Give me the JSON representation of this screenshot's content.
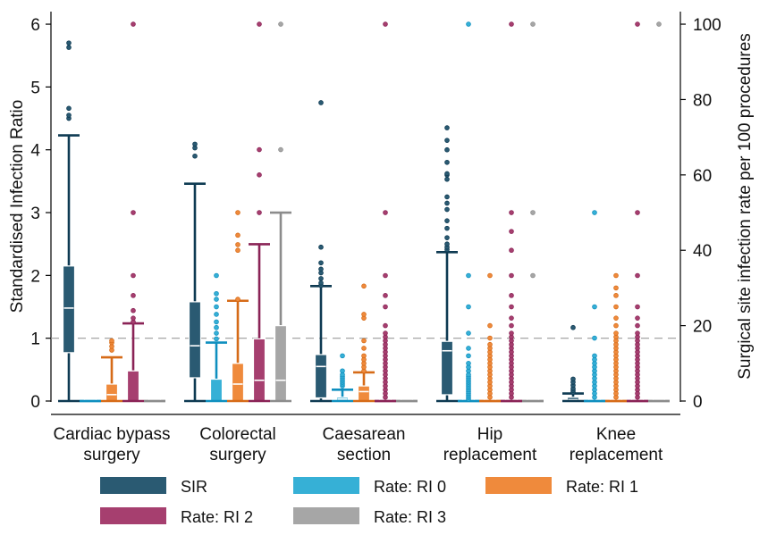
{
  "chart_data": {
    "type": "box",
    "ylabel": "Standardised Infection Ratio",
    "y2label": "Surgical site infection rate per 100 procedures",
    "ylim": [
      0,
      6.2
    ],
    "y2lim": [
      0,
      103.33
    ],
    "yticks": [
      "0",
      "1",
      "2",
      "3",
      "4",
      "5",
      "6"
    ],
    "y2ticks": [
      "0",
      "20",
      "40",
      "60",
      "80",
      "100"
    ],
    "reference_line": 1,
    "categories": [
      {
        "line1": "Cardiac bypass",
        "line2": "surgery"
      },
      {
        "line1": "Colorectal",
        "line2": "surgery"
      },
      {
        "line1": "Caesarean",
        "line2": "section"
      },
      {
        "line1": "Hip",
        "line2": "replacement"
      },
      {
        "line1": "Knee",
        "line2": "replacement"
      }
    ],
    "legend": [
      {
        "label": "SIR",
        "color": "#2a5a72"
      },
      {
        "label": "Rate: RI 0",
        "color": "#36b0d6"
      },
      {
        "label": "Rate: RI 1",
        "color": "#ef8a3c"
      },
      {
        "label": "Rate: RI 2",
        "color": "#a63f6f"
      },
      {
        "label": "Rate: RI 3",
        "color": "#a6a6a6"
      }
    ],
    "series": [
      {
        "name": "SIR",
        "axis": "left",
        "color": "#2a5a72",
        "edge": "#0e3a52",
        "boxes": [
          {
            "q1": 0.77,
            "med": 1.48,
            "q3": 2.15,
            "lo": 0,
            "hi": 4.23,
            "out": [
              4.5,
              4.55,
              4.66,
              5.63,
              5.7
            ]
          },
          {
            "q1": 0.37,
            "med": 0.88,
            "q3": 1.58,
            "lo": 0,
            "hi": 3.46,
            "out": [
              3.9,
              4.03,
              4.09
            ]
          },
          {
            "q1": 0.05,
            "med": 0.55,
            "q3": 0.74,
            "lo": 0,
            "hi": 1.83,
            "out": [
              1.84,
              1.88,
              1.95,
              2.04,
              2.1,
              2.2,
              2.45,
              4.75
            ]
          },
          {
            "q1": 0.1,
            "med": 0.8,
            "q3": 0.95,
            "lo": 0,
            "hi": 2.37,
            "out": [
              2.41,
              2.45,
              2.5,
              2.6,
              2.75,
              2.87,
              3.05,
              3.15,
              3.25,
              3.53,
              3.6,
              3.62,
              3.8,
              4.0,
              4.15,
              4.35
            ]
          },
          {
            "q1": 0,
            "med": 0.02,
            "q3": 0.06,
            "lo": 0,
            "hi": 0.12,
            "out": [
              0.14,
              0.17,
              0.2,
              0.25,
              0.3,
              0.35,
              1.17
            ]
          }
        ]
      },
      {
        "name": "Rate: RI 0",
        "axis": "right",
        "color": "#36b0d6",
        "edge": "#0f8fbf",
        "boxes": [
          {
            "q1": 0,
            "med": 0,
            "q3": 0,
            "lo": 0,
            "hi": 0,
            "out": []
          },
          {
            "q1": 0,
            "med": 0,
            "q3": 5.8,
            "lo": 0,
            "hi": 15.5,
            "out": [
              16.5,
              18,
              19.5,
              21,
              23,
              25,
              27,
              28.5,
              33.3
            ]
          },
          {
            "q1": 0,
            "med": 0.5,
            "q3": 1,
            "lo": 0,
            "hi": 3,
            "out": [
              4,
              4.5,
              5,
              5.5,
              6,
              6.5,
              7,
              8,
              12
            ]
          },
          {
            "q1": 0,
            "med": 0,
            "q3": 0,
            "lo": 0,
            "hi": 0,
            "out": [
              0.5,
              1,
              1.5,
              2,
              2.5,
              3,
              3.5,
              4,
              4.5,
              5,
              5.5,
              6,
              6.5,
              7,
              8,
              9,
              10,
              12,
              14,
              18,
              25,
              33.3,
              100
            ]
          },
          {
            "q1": 0,
            "med": 0,
            "q3": 0,
            "lo": 0,
            "hi": 0,
            "out": [
              1,
              2,
              3,
              4,
              5,
              6,
              7,
              8,
              9,
              10,
              11,
              12,
              16.7,
              25,
              50
            ]
          }
        ]
      },
      {
        "name": "Rate: RI 1",
        "axis": "right",
        "color": "#ef8a3c",
        "edge": "#d66b18",
        "boxes": [
          {
            "q1": 0,
            "med": 1.7,
            "q3": 4.5,
            "lo": 0,
            "hi": 11.6,
            "out": [
              13.5,
              14.5,
              15.5,
              16
            ]
          },
          {
            "q1": 0,
            "med": 4.5,
            "q3": 10,
            "lo": 0,
            "hi": 26.6,
            "out": [
              27,
              40,
              41.5,
              44,
              50
            ]
          },
          {
            "q1": 0,
            "med": 2.5,
            "q3": 4,
            "lo": 0,
            "hi": 7.6,
            "out": [
              8,
              9,
              10,
              11,
              12,
              14,
              16,
              22,
              23,
              30.5
            ]
          },
          {
            "q1": 0,
            "med": 0,
            "q3": 0,
            "lo": 0,
            "hi": 0,
            "out": [
              1,
              2,
              3,
              4,
              5,
              6,
              7,
              8,
              9,
              10,
              11,
              12,
              13,
              14,
              15,
              16.7,
              20,
              33.3
            ]
          },
          {
            "q1": 0,
            "med": 0,
            "q3": 0,
            "lo": 0,
            "hi": 0,
            "out": [
              1,
              2,
              3,
              4,
              5,
              6,
              7,
              8,
              9,
              10,
              11,
              12,
              13,
              14,
              15,
              16,
              17,
              18,
              20,
              22,
              25,
              28,
              30,
              33.3
            ]
          }
        ]
      },
      {
        "name": "Rate: RI 2",
        "axis": "right",
        "color": "#a63f6f",
        "edge": "#8a2356",
        "boxes": [
          {
            "q1": 0,
            "med": 0,
            "q3": 8,
            "lo": 0,
            "hi": 20.6,
            "out": [
              21,
              22,
              24,
              28,
              33.3,
              50,
              100
            ]
          },
          {
            "q1": 0,
            "med": 5.5,
            "q3": 16.5,
            "lo": 0,
            "hi": 41.6,
            "out": [
              50,
              60,
              66.7,
              100
            ]
          },
          {
            "q1": 0,
            "med": 0,
            "q3": 0,
            "lo": 0,
            "hi": 0,
            "out": [
              1,
              2,
              3,
              4,
              5,
              6,
              7,
              8,
              9,
              10,
              11,
              12,
              13,
              14,
              15,
              16,
              17,
              18,
              20,
              25,
              28,
              33.3,
              50,
              100
            ]
          },
          {
            "q1": 0,
            "med": 0,
            "q3": 0,
            "lo": 0,
            "hi": 0,
            "out": [
              1,
              2,
              3,
              4,
              5,
              6,
              7,
              8,
              9,
              10,
              11,
              12,
              13,
              14,
              15,
              16,
              17,
              18,
              20,
              22,
              25,
              28,
              33.3,
              40,
              45,
              50,
              100
            ]
          },
          {
            "q1": 0,
            "med": 0,
            "q3": 0,
            "lo": 0,
            "hi": 0,
            "out": [
              1,
              2,
              3,
              4,
              5,
              6,
              7,
              8,
              9,
              10,
              11,
              12,
              13,
              14,
              15,
              16,
              17,
              18,
              20,
              22,
              25,
              33.3,
              50,
              100
            ]
          }
        ]
      },
      {
        "name": "Rate: RI 3",
        "axis": "right",
        "color": "#a6a6a6",
        "edge": "#8c8c8c",
        "boxes": [
          {
            "q1": 0,
            "med": 0,
            "q3": 0,
            "lo": 0,
            "hi": 0,
            "out": []
          },
          {
            "q1": 0,
            "med": 5.5,
            "q3": 20,
            "lo": 0,
            "hi": 50,
            "out": [
              66.7,
              100
            ]
          },
          {
            "q1": 0,
            "med": 0,
            "q3": 0,
            "lo": 0,
            "hi": 0,
            "out": []
          },
          {
            "q1": 0,
            "med": 0,
            "q3": 0,
            "lo": 0,
            "hi": 0,
            "out": [
              33.3,
              50,
              100
            ]
          },
          {
            "q1": 0,
            "med": 0,
            "q3": 0,
            "lo": 0,
            "hi": 0,
            "out": [
              100
            ]
          }
        ]
      }
    ]
  }
}
